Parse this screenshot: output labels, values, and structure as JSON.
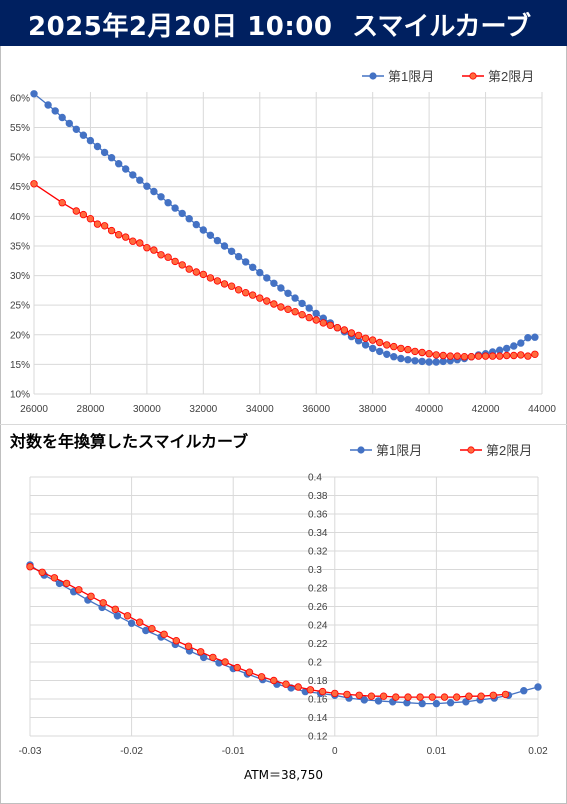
{
  "header": {
    "date": "2025年2月20日 10:00",
    "title": "スマイルカーブ",
    "bg_color": "#002060"
  },
  "colors": {
    "series1": "#4472C4",
    "series1_marker_stroke": "#4472C4",
    "series2": "#FF0000",
    "series2_marker_fill": "#FF6A3D",
    "grid": "#d9d9d9",
    "axis_text": "#404040"
  },
  "chart_data": [
    {
      "type": "line",
      "title": "",
      "xlabel": "",
      "ylabel": "",
      "xlim": [
        26000,
        44000
      ],
      "ylim": [
        0.1,
        0.61
      ],
      "x_ticks": [
        26000,
        28000,
        30000,
        32000,
        34000,
        36000,
        38000,
        40000,
        42000,
        44000
      ],
      "x_tick_labels": [
        "26000",
        "28000",
        "30000",
        "32000",
        "34000",
        "36000",
        "38000",
        "40000",
        "42000",
        "44000"
      ],
      "y_ticks": [
        0.1,
        0.15,
        0.2,
        0.25,
        0.3,
        0.35,
        0.4,
        0.45,
        0.5,
        0.55,
        0.6
      ],
      "y_tick_labels": [
        "10%",
        "15%",
        "20%",
        "25%",
        "30%",
        "35%",
        "40%",
        "45%",
        "50%",
        "55%",
        "60%"
      ],
      "grid": true,
      "legend": "top-right",
      "series": [
        {
          "name": "第1限月",
          "x": [
            26000,
            26500,
            26750,
            27000,
            27250,
            27500,
            27750,
            28000,
            28250,
            28500,
            28750,
            29000,
            29250,
            29500,
            29750,
            30000,
            30250,
            30500,
            30750,
            31000,
            31250,
            31500,
            31750,
            32000,
            32250,
            32500,
            32750,
            33000,
            33250,
            33500,
            33750,
            34000,
            34250,
            34500,
            34750,
            35000,
            35250,
            35500,
            35750,
            36000,
            36250,
            36500,
            36750,
            37000,
            37250,
            37500,
            37750,
            38000,
            38250,
            38500,
            38750,
            39000,
            39250,
            39500,
            39750,
            40000,
            40250,
            40500,
            40750,
            41000,
            41250,
            41500,
            41750,
            42000,
            42250,
            42500,
            42750,
            43000,
            43250,
            43500,
            43750
          ],
          "values": [
            0.607,
            0.588,
            0.578,
            0.567,
            0.557,
            0.547,
            0.537,
            0.528,
            0.518,
            0.508,
            0.499,
            0.489,
            0.48,
            0.47,
            0.461,
            0.451,
            0.442,
            0.433,
            0.423,
            0.414,
            0.405,
            0.396,
            0.386,
            0.377,
            0.368,
            0.359,
            0.35,
            0.341,
            0.332,
            0.323,
            0.314,
            0.305,
            0.296,
            0.287,
            0.279,
            0.27,
            0.262,
            0.253,
            0.245,
            0.236,
            0.228,
            0.22,
            0.212,
            0.205,
            0.197,
            0.19,
            0.183,
            0.177,
            0.172,
            0.167,
            0.163,
            0.16,
            0.158,
            0.156,
            0.155,
            0.154,
            0.154,
            0.155,
            0.156,
            0.158,
            0.16,
            0.163,
            0.166,
            0.168,
            0.171,
            0.174,
            0.177,
            0.181,
            0.186,
            0.195,
            0.196
          ]
        },
        {
          "name": "第2限月",
          "x": [
            26000,
            27000,
            27500,
            27750,
            28000,
            28250,
            28500,
            28750,
            29000,
            29250,
            29500,
            29750,
            30000,
            30250,
            30500,
            30750,
            31000,
            31250,
            31500,
            31750,
            32000,
            32250,
            32500,
            32750,
            33000,
            33250,
            33500,
            33750,
            34000,
            34250,
            34500,
            34750,
            35000,
            35250,
            35500,
            35750,
            36000,
            36250,
            36500,
            36750,
            37000,
            37250,
            37500,
            37750,
            38000,
            38250,
            38500,
            38750,
            39000,
            39250,
            39500,
            39750,
            40000,
            40250,
            40500,
            40750,
            41000,
            41250,
            41500,
            41750,
            42000,
            42250,
            42500,
            42750,
            43000,
            43250,
            43500,
            43750
          ],
          "values": [
            0.455,
            0.423,
            0.409,
            0.403,
            0.396,
            0.387,
            0.384,
            0.376,
            0.369,
            0.365,
            0.358,
            0.355,
            0.347,
            0.343,
            0.335,
            0.331,
            0.324,
            0.318,
            0.311,
            0.306,
            0.302,
            0.296,
            0.291,
            0.286,
            0.282,
            0.276,
            0.271,
            0.267,
            0.262,
            0.257,
            0.252,
            0.247,
            0.243,
            0.239,
            0.234,
            0.229,
            0.225,
            0.22,
            0.216,
            0.212,
            0.208,
            0.203,
            0.199,
            0.194,
            0.191,
            0.187,
            0.183,
            0.18,
            0.177,
            0.175,
            0.172,
            0.17,
            0.168,
            0.166,
            0.165,
            0.164,
            0.164,
            0.163,
            0.163,
            0.164,
            0.164,
            0.164,
            0.164,
            0.165,
            0.165,
            0.166,
            0.164,
            0.167
          ]
        }
      ]
    },
    {
      "type": "line",
      "title": "対数を年換算したスマイルカーブ",
      "xlabel": "ATM＝38,750",
      "ylabel": "",
      "xlim": [
        -0.03,
        0.02
      ],
      "ylim": [
        0.12,
        0.4
      ],
      "x_ticks": [
        -0.03,
        -0.02,
        -0.01,
        0,
        0.01,
        0.02
      ],
      "x_tick_labels": [
        "-0.03",
        "-0.02",
        "-0.01",
        "0",
        "0.01",
        "0.02"
      ],
      "y_ticks": [
        0.12,
        0.14,
        0.16,
        0.18,
        0.2,
        0.22,
        0.24,
        0.26,
        0.28,
        0.3,
        0.32,
        0.34,
        0.36,
        0.38,
        0.4
      ],
      "y_tick_labels": [
        "0.12",
        "0.14",
        "0.16",
        "0.18",
        "0.2",
        "0.22",
        "0.24",
        "0.26",
        "0.28",
        "0.3",
        "0.32",
        "0.34",
        "0.36",
        "0.38",
        "0.4"
      ],
      "grid": true,
      "legend": "top-right",
      "series": [
        {
          "name": "第1限月",
          "x": [
            -0.03,
            -0.0286,
            -0.0271,
            -0.0257,
            -0.0243,
            -0.0229,
            -0.0214,
            -0.02,
            -0.0186,
            -0.0171,
            -0.0157,
            -0.0143,
            -0.0129,
            -0.0114,
            -0.01,
            -0.0086,
            -0.0071,
            -0.0057,
            -0.0043,
            -0.0029,
            -0.0014,
            0.0,
            0.0014,
            0.0029,
            0.0043,
            0.0057,
            0.0071,
            0.0086,
            0.01,
            0.0114,
            0.0129,
            0.0143,
            0.0157,
            0.0171,
            0.0186,
            0.02
          ],
          "values": [
            0.305,
            0.294,
            0.285,
            0.276,
            0.267,
            0.259,
            0.25,
            0.242,
            0.234,
            0.227,
            0.219,
            0.212,
            0.205,
            0.199,
            0.193,
            0.187,
            0.181,
            0.176,
            0.172,
            0.168,
            0.166,
            0.164,
            0.161,
            0.159,
            0.158,
            0.157,
            0.156,
            0.155,
            0.155,
            0.156,
            0.157,
            0.159,
            0.161,
            0.164,
            0.169,
            0.173
          ]
        },
        {
          "name": "第2限月",
          "x": [
            -0.03,
            -0.0288,
            -0.0276,
            -0.0264,
            -0.0252,
            -0.024,
            -0.0228,
            -0.0216,
            -0.0204,
            -0.0192,
            -0.018,
            -0.0168,
            -0.0156,
            -0.0144,
            -0.0132,
            -0.012,
            -0.0108,
            -0.0096,
            -0.0084,
            -0.0072,
            -0.006,
            -0.0048,
            -0.0036,
            -0.0024,
            -0.0012,
            0.0,
            0.0012,
            0.0024,
            0.0036,
            0.0048,
            0.006,
            0.0072,
            0.0084,
            0.0096,
            0.0108,
            0.012,
            0.0132,
            0.0144,
            0.0156,
            0.0168
          ],
          "values": [
            0.303,
            0.297,
            0.291,
            0.285,
            0.278,
            0.271,
            0.264,
            0.257,
            0.25,
            0.243,
            0.236,
            0.23,
            0.223,
            0.217,
            0.211,
            0.205,
            0.2,
            0.194,
            0.189,
            0.184,
            0.18,
            0.176,
            0.173,
            0.17,
            0.168,
            0.166,
            0.165,
            0.164,
            0.163,
            0.163,
            0.162,
            0.162,
            0.162,
            0.162,
            0.162,
            0.162,
            0.163,
            0.163,
            0.164,
            0.165
          ]
        }
      ]
    }
  ]
}
